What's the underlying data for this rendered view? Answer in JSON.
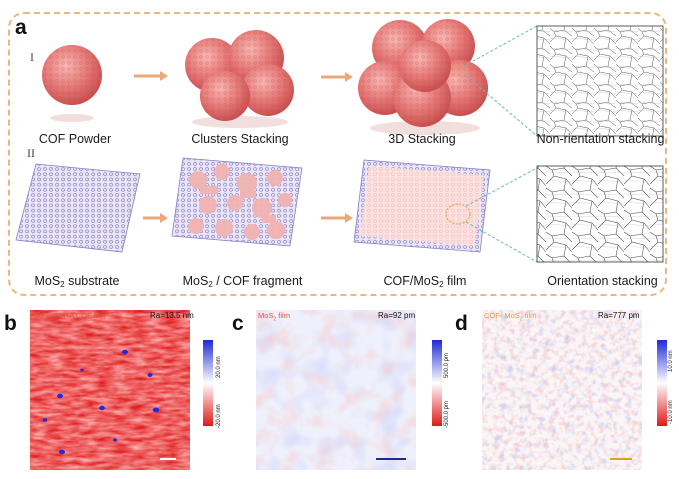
{
  "panel_a": {
    "letter": "a",
    "row1_roman": "I",
    "row2_roman": "II",
    "row1_captions": [
      "COF Powder",
      "Clusters Stacking",
      "3D Stacking",
      "Non-rientation stacking"
    ],
    "row2_captions": {
      "mos2_substrate": {
        "pre": "MoS",
        "sub": "2",
        "post": " substrate"
      },
      "mos2_cof_fragment": {
        "pre": "MoS",
        "sub": "2",
        "post": " / COF fragment"
      },
      "cof_mos2_film": {
        "pre": "COF/MoS",
        "sub": "2",
        "post": " film"
      },
      "orientation": "Orientation stacking"
    }
  },
  "panel_b": {
    "letter": "b",
    "label": "TAPB-DMTA COF film",
    "ra": "Ra=13.5 nm",
    "cbar_top": "20.0 nm",
    "cbar_bottom": "-20.0 nm"
  },
  "panel_c": {
    "letter": "c",
    "label_pre": "MoS",
    "label_sub": "2",
    "label_post": " film",
    "ra": "Ra=92 pm",
    "cbar_top": "500.0 pm",
    "cbar_bottom": "-500.0 pm"
  },
  "panel_d": {
    "letter": "d",
    "label_pre": "COF- MoS",
    "label_sub": "2",
    "label_post": " film",
    "ra": "Ra=777 pm",
    "cbar_top": "10.0 nm",
    "cbar_bottom": "-10.0 nm"
  },
  "colors": {
    "frame": "#e9b87e",
    "arrow": "#eaa97a",
    "cof_pink": "#e8797a",
    "mos2_purple": "#8a7fc4",
    "label_red": "#e0533f",
    "label_orange": "#e89a3c",
    "scalebar_b": "#ffffff",
    "scalebar_c": "#1f2a8c",
    "scalebar_d": "#e0a020"
  }
}
